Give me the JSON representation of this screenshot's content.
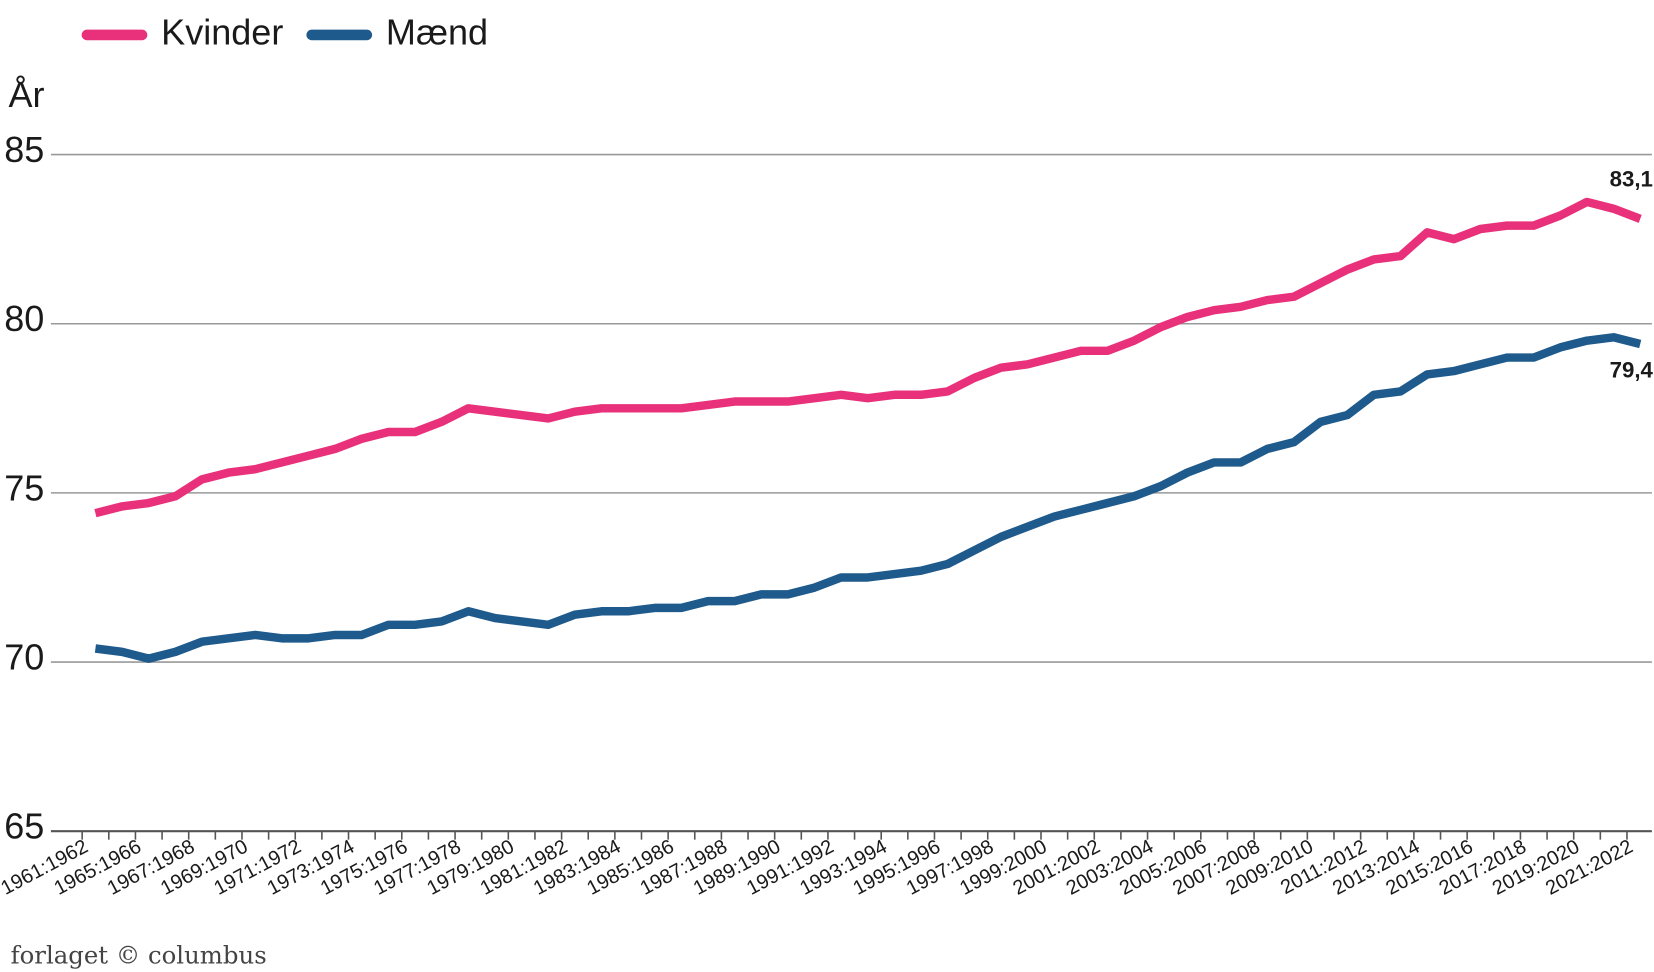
{
  "chart_data": {
    "type": "line",
    "y_label": "År",
    "source": "forlaget © columbus",
    "categories": [
      "1961:1962",
      null,
      "1965:1966",
      null,
      "1967:1968",
      null,
      "1969:1970",
      null,
      "1971:1972",
      null,
      "1973:1974",
      null,
      "1975:1976",
      null,
      "1977:1978",
      null,
      "1979:1980",
      null,
      "1981:1982",
      null,
      "1983:1984",
      null,
      "1985:1986",
      null,
      "1987:1988",
      null,
      "1989:1990",
      null,
      "1991:1992",
      null,
      "1993:1994",
      null,
      "1995:1996",
      null,
      "1997:1998",
      null,
      "1999:2000",
      null,
      "2001:2002",
      null,
      "2003:2004",
      null,
      "2005:2006",
      null,
      "2007:2008",
      null,
      "2009:2010",
      null,
      "2011:2012",
      null,
      "2013:2014",
      null,
      "2015:2016",
      null,
      "2017:2018",
      null,
      "2019:2020",
      null,
      "2021:2022"
    ],
    "series": [
      {
        "name": "Kvinder",
        "color": "#e8317a",
        "values": [
          74.4,
          74.6,
          74.7,
          74.9,
          75.4,
          75.6,
          75.7,
          75.9,
          76.1,
          76.3,
          76.6,
          76.8,
          76.8,
          77.1,
          77.5,
          77.4,
          77.3,
          77.2,
          77.4,
          77.5,
          77.5,
          77.5,
          77.5,
          77.6,
          77.7,
          77.7,
          77.7,
          77.8,
          77.9,
          77.8,
          77.9,
          77.9,
          78.0,
          78.4,
          78.7,
          78.8,
          79.0,
          79.2,
          79.2,
          79.5,
          79.9,
          80.2,
          80.4,
          80.5,
          80.7,
          80.8,
          81.2,
          81.6,
          81.9,
          82.0,
          82.7,
          82.5,
          82.8,
          82.9,
          82.9,
          83.2,
          83.6,
          83.4,
          83.1
        ],
        "value_labels": [
          null,
          null,
          null,
          null,
          null,
          null,
          null,
          null,
          null,
          null,
          null,
          null,
          null,
          null,
          null,
          null,
          null,
          null,
          null,
          null,
          null,
          null,
          null,
          null,
          null,
          null,
          null,
          null,
          null,
          null,
          null,
          null,
          null,
          null,
          null,
          null,
          null,
          null,
          null,
          null,
          null,
          null,
          null,
          null,
          null,
          null,
          null,
          null,
          null,
          null,
          null,
          null,
          null,
          null,
          null,
          null,
          null,
          null,
          "83,1"
        ]
      },
      {
        "name": "Mænd",
        "color": "#1f5a8c",
        "values": [
          70.4,
          70.3,
          70.1,
          70.3,
          70.6,
          70.7,
          70.8,
          70.7,
          70.7,
          70.8,
          70.8,
          71.1,
          71.1,
          71.2,
          71.5,
          71.3,
          71.2,
          71.1,
          71.4,
          71.5,
          71.5,
          71.6,
          71.6,
          71.8,
          71.8,
          72.0,
          72.0,
          72.2,
          72.5,
          72.5,
          72.6,
          72.7,
          72.9,
          73.3,
          73.7,
          74.0,
          74.3,
          74.5,
          74.7,
          74.9,
          75.2,
          75.6,
          75.9,
          75.9,
          76.3,
          76.5,
          77.1,
          77.3,
          77.9,
          78.0,
          78.5,
          78.6,
          78.8,
          79.0,
          79.0,
          79.3,
          79.5,
          79.6,
          79.4
        ],
        "value_labels": [
          null,
          null,
          null,
          null,
          null,
          null,
          null,
          null,
          null,
          null,
          null,
          null,
          null,
          null,
          null,
          null,
          null,
          null,
          null,
          null,
          null,
          null,
          null,
          null,
          null,
          null,
          null,
          null,
          null,
          null,
          null,
          null,
          null,
          null,
          null,
          null,
          null,
          null,
          null,
          null,
          null,
          null,
          null,
          null,
          null,
          null,
          null,
          null,
          null,
          null,
          null,
          null,
          null,
          null,
          null,
          null,
          null,
          null,
          "79,4"
        ]
      }
    ],
    "ylim": [
      65,
      85
    ],
    "yticks": [
      65,
      70,
      75,
      80,
      85
    ],
    "grid": true,
    "legend": "top-left"
  }
}
